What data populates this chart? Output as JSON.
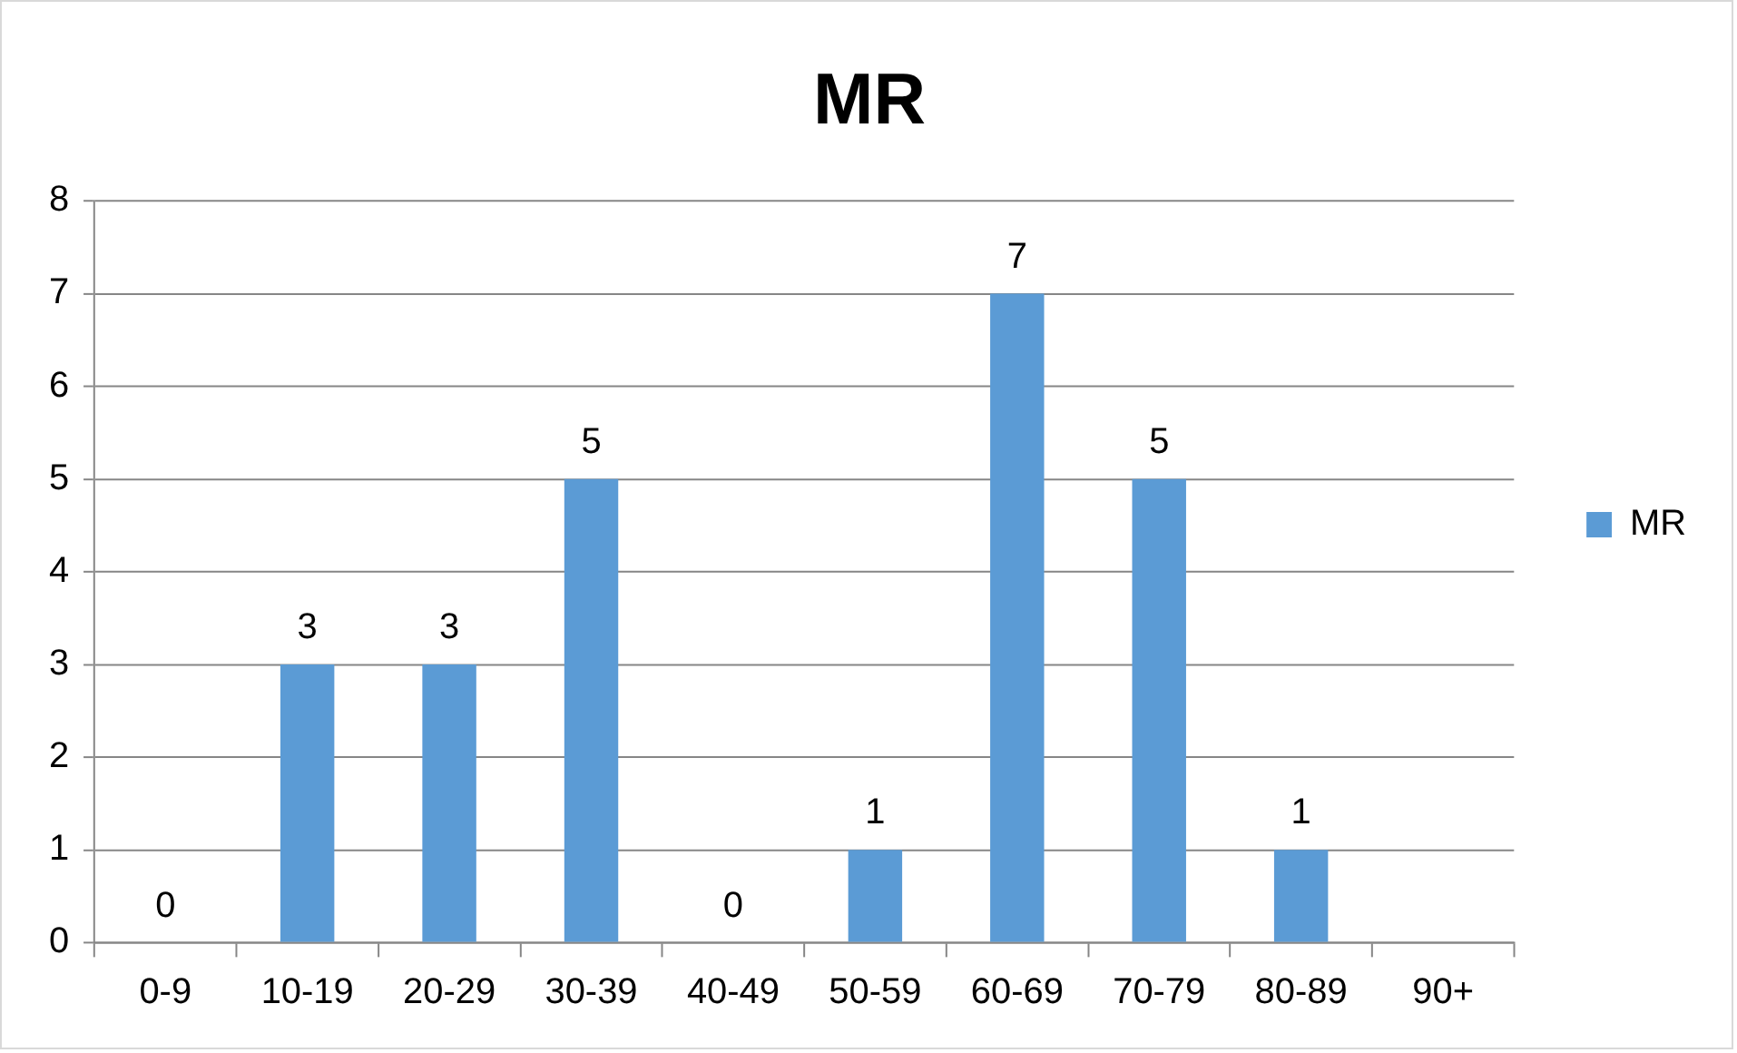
{
  "chart_data": {
    "type": "bar",
    "title": "MR",
    "categories": [
      "0-9",
      "10-19",
      "20-29",
      "30-39",
      "40-49",
      "50-59",
      "60-69",
      "70-79",
      "80-89",
      "90+"
    ],
    "series": [
      {
        "name": "MR",
        "color": "#5b9bd5",
        "values": [
          0,
          3,
          3,
          5,
          0,
          1,
          7,
          5,
          1,
          null
        ]
      }
    ],
    "ylim": [
      0,
      8
    ],
    "yticks": [
      0,
      1,
      2,
      3,
      4,
      5,
      6,
      7,
      8
    ],
    "grid": "y",
    "legend": "right",
    "data_labels": true
  }
}
